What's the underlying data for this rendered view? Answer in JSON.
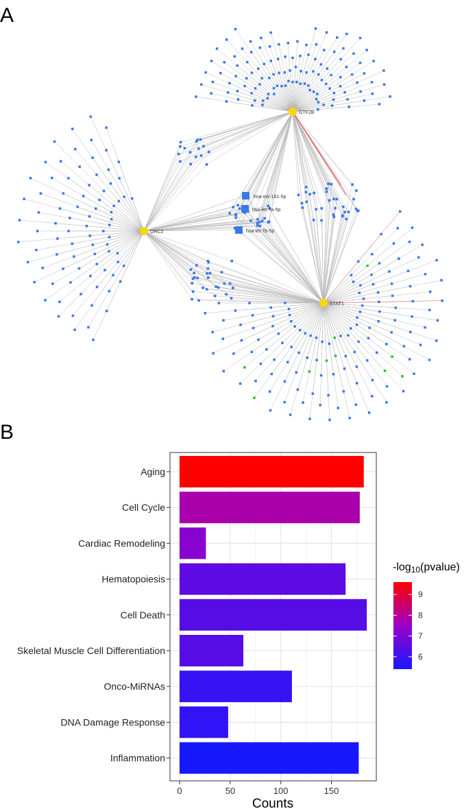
{
  "panels": {
    "a": "A",
    "b": "B"
  },
  "network": {
    "hubs": [
      {
        "id": "gtf2b",
        "label": "GTF2B"
      },
      {
        "id": "orc2",
        "label": "ORC2"
      },
      {
        "id": "stat1",
        "label": "STAT1"
      }
    ],
    "mirnas": [
      {
        "id": "mir191",
        "label": "hsa-mir-191-5p"
      },
      {
        "id": "let7a",
        "label": "hsa-let-7a-5p"
      },
      {
        "id": "let7b",
        "label": "hsa-let-7b-5p"
      }
    ],
    "colors": {
      "hub": "#ffd700",
      "target": "#3a78e6",
      "other": "#33bb33",
      "edge": "#b8b8b8",
      "highlight": "#e05050"
    }
  },
  "chart_data": {
    "type": "bar",
    "orientation": "horizontal",
    "categories": [
      "Aging",
      "Cell Cycle",
      "Cardiac Remodeling",
      "Hematopoiesis",
      "Cell Death",
      "Skeletal Muscle Cell Differentiation",
      "Onco-MiRNAs",
      "DNA Damage Response",
      "Inflammation"
    ],
    "values": [
      182,
      178,
      26,
      164,
      185,
      63,
      111,
      48,
      177
    ],
    "neg_log10_pvalue": [
      9.6,
      7.8,
      7.2,
      6.5,
      6.4,
      6.4,
      5.9,
      5.8,
      5.4
    ],
    "xlabel": "Counts",
    "xlim": [
      0,
      195
    ],
    "xticks": [
      0,
      50,
      100,
      150
    ],
    "grid": true,
    "legend": {
      "title_prefix": "-log",
      "title_sub": "10",
      "title_suffix": "(pvalue)",
      "ticks": [
        6,
        7,
        8,
        9
      ],
      "range": [
        5.4,
        9.6
      ],
      "placement": "right",
      "colors": {
        "low": "#1818ff",
        "mid": "#9b00c8",
        "high": "#ff0000"
      }
    }
  }
}
